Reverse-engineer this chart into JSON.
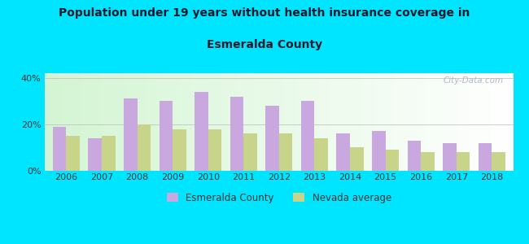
{
  "title_line1": "Population under 19 years without health insurance coverage in",
  "title_line2": "Esmeralda County",
  "years": [
    2006,
    2007,
    2008,
    2009,
    2010,
    2011,
    2012,
    2013,
    2014,
    2015,
    2016,
    2017,
    2018
  ],
  "esmeralda": [
    19,
    14,
    31,
    30,
    34,
    32,
    28,
    30,
    16,
    17,
    13,
    12,
    12
  ],
  "nevada": [
    15,
    15,
    20,
    18,
    18,
    16,
    16,
    14,
    10,
    9,
    8,
    8,
    8
  ],
  "bar_color_esmeralda": "#c9a8e0",
  "bar_color_nevada": "#c8d48a",
  "ylim": [
    0,
    42
  ],
  "yticks": [
    0,
    20,
    40
  ],
  "ytick_labels": [
    "0%",
    "20%",
    "40%"
  ],
  "background_outer": "#00e5ff",
  "legend_label_esmeralda": "Esmeralda County",
  "legend_label_nevada": "Nevada average",
  "bar_width": 0.38,
  "watermark": "City-Data.com"
}
